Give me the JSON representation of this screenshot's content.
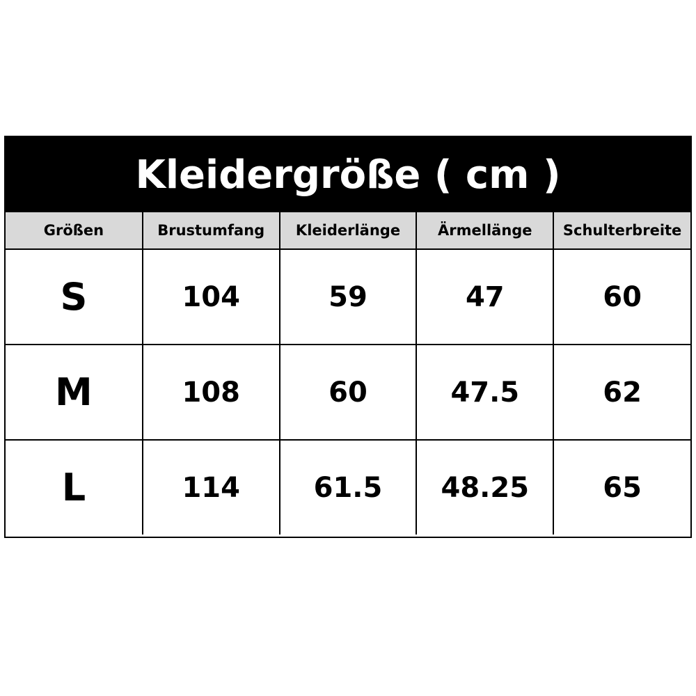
{
  "chart": {
    "title": "Kleidergröße ( cm )",
    "headers": [
      "Größen",
      "Brustumfang",
      "Kleiderlänge",
      "Ärmellänge",
      "Schulterbreite"
    ],
    "rows": [
      {
        "size": "S",
        "brustumfang": "104",
        "kleiderlaenge": "59",
        "aermellaenge": "47",
        "schulterbreite": "60"
      },
      {
        "size": "M",
        "brustumfang": "108",
        "kleiderlaenge": "60",
        "aermellaenge": "47.5",
        "schulterbreite": "62"
      },
      {
        "size": "L",
        "brustumfang": "114",
        "kleiderlaenge": "61.5",
        "aermellaenge": "48.25",
        "schulterbreite": "65"
      }
    ]
  },
  "colors": {
    "title_background": "#000000",
    "title_text": "#ffffff",
    "header_background": "#d9d9d9",
    "border": "#000000"
  }
}
